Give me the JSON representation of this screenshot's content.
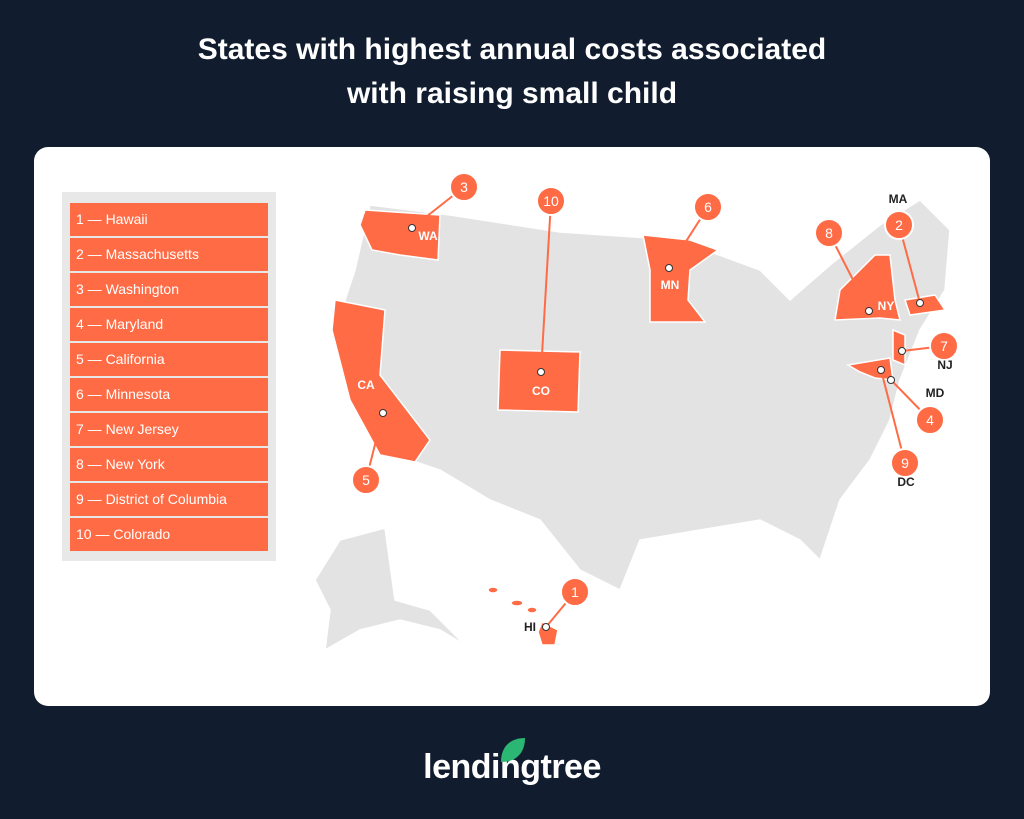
{
  "title_line1": "States with highest annual costs associated",
  "title_line2": "with raising small child",
  "legend": [
    "1 — Hawaii",
    "2 — Massachusetts",
    "3 — Washington",
    "4 — Maryland",
    "5 — California",
    "6 — Minnesota",
    "7 — New Jersey",
    "8 — New York",
    "9 — District of Columbia",
    "10 — Colorado"
  ],
  "markers": [
    {
      "rank": "1",
      "state": "HI"
    },
    {
      "rank": "2",
      "state": "MA"
    },
    {
      "rank": "3",
      "state": "WA"
    },
    {
      "rank": "4",
      "state": "MD"
    },
    {
      "rank": "5",
      "state": "CA"
    },
    {
      "rank": "6",
      "state": "MN"
    },
    {
      "rank": "7",
      "state": "NJ"
    },
    {
      "rank": "8",
      "state": "NY"
    },
    {
      "rank": "9",
      "state": "DC"
    },
    {
      "rank": "10",
      "state": "CO"
    }
  ],
  "colors": {
    "highlight": "#ff6b45",
    "base": "#e3e3e3",
    "background": "#111d2e",
    "logo_leaf": "#2bb673"
  },
  "logo": "lendingtree"
}
